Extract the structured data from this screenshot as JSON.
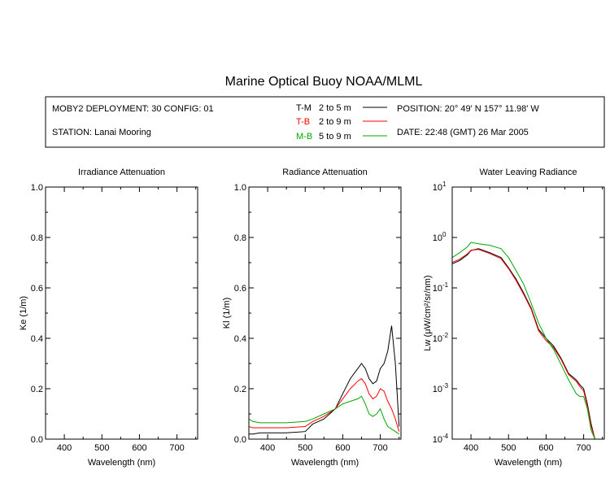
{
  "header": {
    "title": "Marine Optical Buoy NOAA/MLML",
    "deployment": "MOBY2 DEPLOYMENT: 30 CONFIG: 01",
    "station": "STATION: Lanai Mooring",
    "position": "POSITION: 20° 49' N   157° 11.98' W",
    "date": "DATE: 22:48 (GMT) 26 Mar 2005"
  },
  "legend": [
    {
      "id": "T-M",
      "range": "2 to 5  m",
      "color": "#000000"
    },
    {
      "id": "T-B",
      "range": "2 to 9  m",
      "color": "#ff0000"
    },
    {
      "id": "M-B",
      "range": "5 to 9  m",
      "color": "#00aa00"
    }
  ],
  "chart_data": [
    {
      "type": "line",
      "title": "Irradiance Attenuation",
      "xlabel": "Wavelength (nm)",
      "ylabel": "Ke  (1/m)",
      "xlim": [
        350,
        755
      ],
      "ylim": [
        0,
        1
      ],
      "xticks": [
        400,
        500,
        600,
        700
      ],
      "yticks": [
        "0.0",
        "0.2",
        "0.4",
        "0.6",
        "0.8",
        "1.0"
      ],
      "series": []
    },
    {
      "type": "line",
      "title": "Radiance Attenuation",
      "xlabel": "Wavelength (nm)",
      "ylabel": "Kl  (1/m)",
      "xlim": [
        350,
        755
      ],
      "ylim": [
        0,
        1
      ],
      "xticks": [
        400,
        500,
        600,
        700
      ],
      "yticks": [
        "0.0",
        "0.2",
        "0.4",
        "0.6",
        "0.8",
        "1.0"
      ],
      "series": [
        {
          "name": "T-M",
          "color": "#000000",
          "x": [
            350,
            360,
            380,
            400,
            450,
            500,
            520,
            550,
            580,
            600,
            620,
            640,
            650,
            660,
            670,
            680,
            690,
            700,
            710,
            720,
            730,
            740,
            750
          ],
          "y": [
            0.02,
            0.02,
            0.025,
            0.025,
            0.025,
            0.03,
            0.06,
            0.08,
            0.12,
            0.18,
            0.24,
            0.28,
            0.3,
            0.28,
            0.24,
            0.22,
            0.23,
            0.28,
            0.3,
            0.35,
            0.45,
            0.3,
            0.05
          ]
        },
        {
          "name": "T-B",
          "color": "#ff0000",
          "x": [
            350,
            360,
            380,
            400,
            450,
            500,
            520,
            550,
            580,
            600,
            620,
            640,
            650,
            660,
            670,
            680,
            690,
            700,
            710,
            720,
            730,
            740,
            750
          ],
          "y": [
            0.05,
            0.045,
            0.045,
            0.045,
            0.045,
            0.05,
            0.07,
            0.09,
            0.12,
            0.16,
            0.2,
            0.23,
            0.24,
            0.22,
            0.18,
            0.16,
            0.17,
            0.2,
            0.19,
            0.15,
            0.12,
            0.08,
            0.03
          ]
        },
        {
          "name": "M-B",
          "color": "#00aa00",
          "x": [
            350,
            360,
            380,
            400,
            450,
            500,
            520,
            550,
            580,
            600,
            620,
            640,
            650,
            660,
            670,
            680,
            690,
            700,
            710,
            720,
            730,
            740,
            750
          ],
          "y": [
            0.08,
            0.07,
            0.065,
            0.065,
            0.065,
            0.07,
            0.08,
            0.1,
            0.12,
            0.14,
            0.15,
            0.16,
            0.17,
            0.14,
            0.1,
            0.09,
            0.1,
            0.12,
            0.08,
            0.05,
            0.04,
            0.03,
            0.02
          ]
        }
      ]
    },
    {
      "type": "line",
      "title": "Water Leaving Radiance",
      "xlabel": "Wavelength (nm)",
      "ylabel": "Lw  (μW/cm²/sr/nm)",
      "xlim": [
        350,
        755
      ],
      "ylim": [
        0.0001,
        10
      ],
      "yscale": "log",
      "xticks": [
        400,
        500,
        600,
        700
      ],
      "yticks": [
        "10",
        "10",
        "10",
        "10",
        "10",
        "10"
      ],
      "yexps": [
        "1",
        "0",
        "-1",
        "-2",
        "-3",
        "-4"
      ],
      "series": [
        {
          "name": "T-M",
          "color": "#000000",
          "x": [
            350,
            370,
            390,
            400,
            420,
            450,
            480,
            500,
            520,
            540,
            560,
            580,
            600,
            620,
            640,
            660,
            680,
            690,
            700,
            710,
            720,
            730,
            740,
            750
          ],
          "y": [
            0.3,
            0.35,
            0.45,
            0.55,
            0.6,
            0.5,
            0.4,
            0.25,
            0.15,
            0.08,
            0.04,
            0.015,
            0.01,
            0.007,
            0.004,
            0.002,
            0.0015,
            0.0012,
            0.001,
            0.0005,
            0.0002,
            0.0001,
            0.0001,
            0.0001
          ]
        },
        {
          "name": "T-B",
          "color": "#ff0000",
          "x": [
            350,
            370,
            390,
            400,
            420,
            450,
            480,
            500,
            520,
            540,
            560,
            580,
            600,
            620,
            640,
            660,
            680,
            690,
            700,
            710,
            720,
            730,
            740,
            750
          ],
          "y": [
            0.32,
            0.37,
            0.47,
            0.56,
            0.58,
            0.48,
            0.38,
            0.24,
            0.14,
            0.075,
            0.038,
            0.014,
            0.009,
            0.0065,
            0.0038,
            0.0019,
            0.0014,
            0.0011,
            0.0009,
            0.00045,
            0.00018,
            0.0001,
            0.0001,
            0.0001
          ]
        },
        {
          "name": "M-B",
          "color": "#00aa00",
          "x": [
            350,
            370,
            390,
            400,
            420,
            450,
            480,
            500,
            520,
            540,
            560,
            580,
            600,
            620,
            640,
            660,
            680,
            690,
            700,
            710,
            720,
            730,
            740,
            750
          ],
          "y": [
            0.4,
            0.5,
            0.65,
            0.8,
            0.75,
            0.7,
            0.6,
            0.4,
            0.22,
            0.12,
            0.05,
            0.02,
            0.01,
            0.006,
            0.003,
            0.0015,
            0.0008,
            0.0007,
            0.0007,
            0.0004,
            0.00015,
            0.0001,
            0.0001,
            0.0001
          ]
        }
      ]
    }
  ]
}
